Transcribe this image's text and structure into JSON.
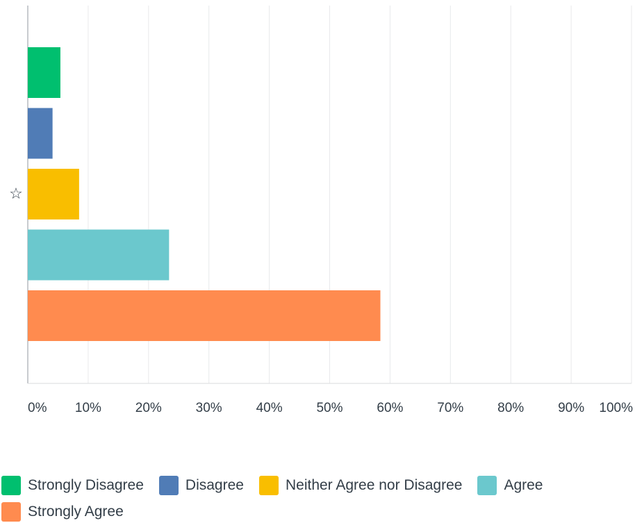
{
  "chart_data": {
    "type": "bar",
    "orientation": "horizontal",
    "category_marker": "☆",
    "series": [
      {
        "name": "Strongly Disagree",
        "value": 5.4,
        "color": "#00bf6f"
      },
      {
        "name": "Disagree",
        "value": 4.1,
        "color": "#507cb6"
      },
      {
        "name": "Neither Agree nor Disagree",
        "value": 8.5,
        "color": "#f9be00"
      },
      {
        "name": "Agree",
        "value": 23.4,
        "color": "#6bc8cd"
      },
      {
        "name": "Strongly Agree",
        "value": 58.4,
        "color": "#ff8b4f"
      }
    ],
    "xlim": [
      0,
      100
    ],
    "x_ticks": [
      "0%",
      "10%",
      "20%",
      "30%",
      "40%",
      "50%",
      "60%",
      "70%",
      "80%",
      "90%",
      "100%"
    ],
    "grid": true,
    "legend_position": "bottom"
  }
}
